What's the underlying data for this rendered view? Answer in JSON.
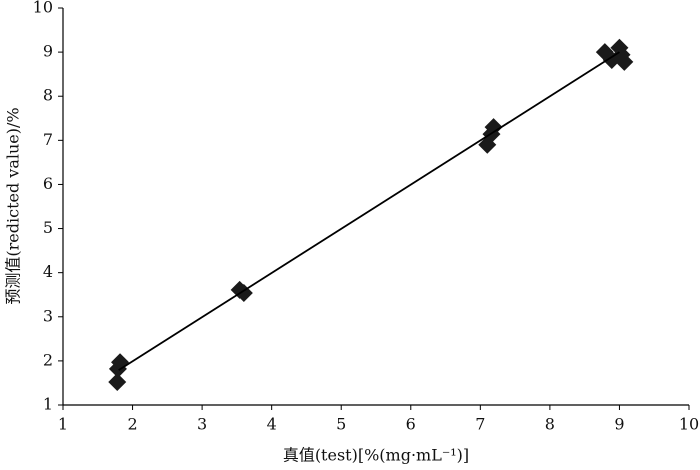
{
  "chart_data": {
    "type": "scatter",
    "x_label": "真值(test)[%(mg·mL⁻¹)]",
    "y_label": "预测值(redicted value)/%",
    "series": [
      {
        "type": "scatter",
        "color": "#1a1a1a",
        "x": [
          1.78,
          1.79,
          1.82,
          3.54,
          3.6,
          7.1,
          7.16,
          7.19,
          8.79,
          8.89,
          9.0,
          9.07,
          9.03
        ],
        "values": [
          1.52,
          1.82,
          1.97,
          3.61,
          3.54,
          6.9,
          7.14,
          7.3,
          9.0,
          8.82,
          9.1,
          8.78,
          8.94
        ]
      },
      {
        "type": "line",
        "color": "#000000",
        "x": [
          1.8,
          9.0
        ],
        "values": [
          1.79,
          9.0
        ]
      }
    ],
    "xlim": [
      1,
      10
    ],
    "xticks": [
      1,
      2,
      3,
      4,
      5,
      6,
      7,
      8,
      9,
      10
    ],
    "ylim": [
      1,
      10
    ],
    "yticks": [
      1,
      2,
      3,
      4,
      5,
      6,
      7,
      8,
      9,
      10
    ],
    "grid": false
  }
}
